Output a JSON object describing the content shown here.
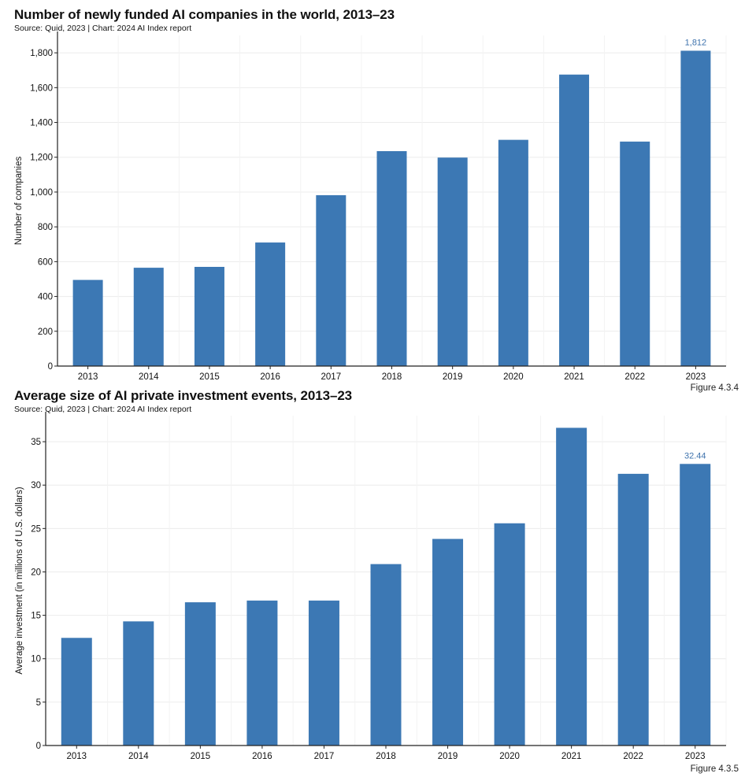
{
  "chart_data": [
    {
      "type": "bar",
      "title": "Number of newly funded AI companies in the world, 2013–23",
      "source": "Source: Quid, 2023 | Chart: 2024 AI Index report",
      "figure": "Figure 4.3.4",
      "xlabel": "",
      "ylabel": "Number of companies",
      "categories": [
        "2013",
        "2014",
        "2015",
        "2016",
        "2017",
        "2018",
        "2019",
        "2020",
        "2021",
        "2022",
        "2023"
      ],
      "values": [
        495,
        565,
        570,
        710,
        982,
        1235,
        1198,
        1300,
        1675,
        1290,
        1812
      ],
      "ylim": [
        0,
        1900
      ],
      "yticks": [
        0,
        200,
        400,
        600,
        800,
        1000,
        1200,
        1400,
        1600,
        1800
      ],
      "ytick_labels": [
        "0",
        "200",
        "400",
        "600",
        "800",
        "1,000",
        "1,200",
        "1,400",
        "1,600",
        "1,800"
      ],
      "annotations": [
        {
          "category": "2023",
          "text": "1,812"
        }
      ],
      "bar_color": "#3c78b4",
      "grid": true
    },
    {
      "type": "bar",
      "title": "Average size of AI private investment events, 2013–23",
      "source": "Source: Quid, 2023 | Chart: 2024 AI Index report",
      "figure": "Figure 4.3.5",
      "xlabel": "",
      "ylabel": "Average investment (in millions of U.S. dollars)",
      "categories": [
        "2013",
        "2014",
        "2015",
        "2016",
        "2017",
        "2018",
        "2019",
        "2020",
        "2021",
        "2022",
        "2023"
      ],
      "values": [
        12.4,
        14.3,
        16.5,
        16.7,
        16.7,
        20.9,
        23.8,
        25.6,
        36.6,
        31.3,
        32.44
      ],
      "ylim": [
        0,
        38
      ],
      "yticks": [
        0,
        5,
        10,
        15,
        20,
        25,
        30,
        35
      ],
      "ytick_labels": [
        "0",
        "5",
        "10",
        "15",
        "20",
        "25",
        "30",
        "35"
      ],
      "annotations": [
        {
          "category": "2023",
          "text": "32.44"
        }
      ],
      "bar_color": "#3c78b4",
      "grid": true
    }
  ]
}
